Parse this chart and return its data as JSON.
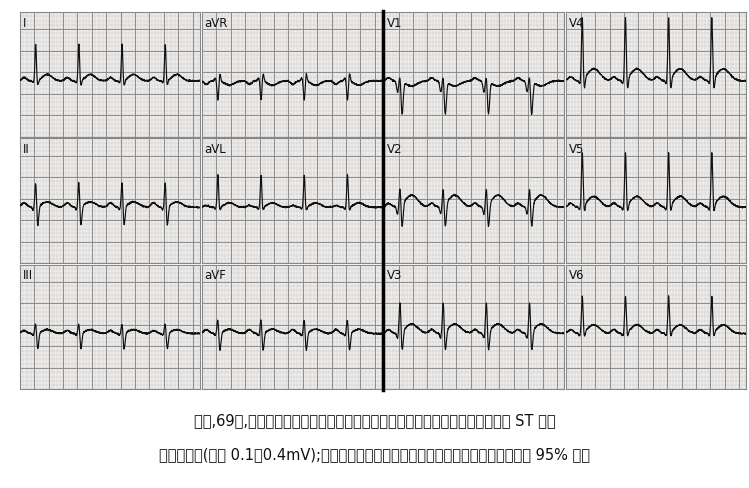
{
  "caption_line1": "男性,69岁,胸痛发作数分钟。显示窦性心动过速、左前分支阻滞、下壁及前侧壁 ST 段呈",
  "caption_line2": "缺血型改变(压低 0.1～0.4mV);冠状动脉造影显示右冠状动脉近乎全部阻塞、左前降肢 95% 狭窄",
  "bg_color": "#f0eeec",
  "grid_minor_color": "#bbbbbb",
  "grid_major_color": "#888888",
  "ecg_color": "#111111",
  "label_color": "#111111",
  "figure_bg": "#ffffff",
  "caption_fontsize": 10.5,
  "label_fontsize": 8.5,
  "leads": [
    {
      "label": "I",
      "row": 0,
      "col": 0,
      "key": "I"
    },
    {
      "label": "aVR",
      "row": 0,
      "col": 1,
      "key": "aVR"
    },
    {
      "label": "V1",
      "row": 0,
      "col": 2,
      "key": "V1"
    },
    {
      "label": "V4",
      "row": 0,
      "col": 3,
      "key": "V4"
    },
    {
      "label": "II",
      "row": 1,
      "col": 0,
      "key": "II"
    },
    {
      "label": "aVL",
      "row": 1,
      "col": 1,
      "key": "aVL"
    },
    {
      "label": "V2",
      "row": 1,
      "col": 2,
      "key": "V2"
    },
    {
      "label": "V5",
      "row": 1,
      "col": 3,
      "key": "V5"
    },
    {
      "label": "III",
      "row": 2,
      "col": 0,
      "key": "III"
    },
    {
      "label": "aVF",
      "row": 2,
      "col": 1,
      "key": "aVF"
    },
    {
      "label": "V3",
      "row": 2,
      "col": 2,
      "key": "V3"
    },
    {
      "label": "V6",
      "row": 2,
      "col": 3,
      "key": "V6"
    }
  ]
}
